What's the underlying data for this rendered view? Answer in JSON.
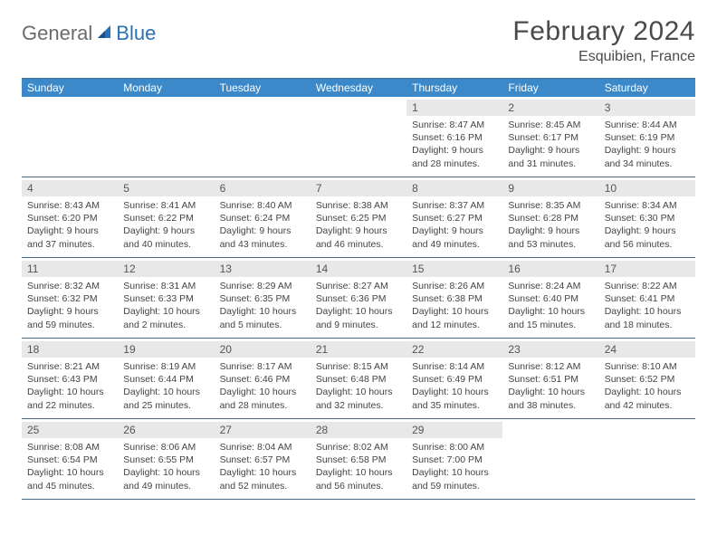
{
  "logo": {
    "general": "General",
    "blue": "Blue"
  },
  "title": "February 2024",
  "location": "Esquibien, France",
  "colors": {
    "header_bg": "#3b89c9",
    "header_text": "#ffffff",
    "day_bar_bg": "#e8e8e8",
    "border": "#4a6a8a",
    "logo_gray": "#6b6b6b",
    "logo_blue": "#2971b8"
  },
  "day_headers": [
    "Sunday",
    "Monday",
    "Tuesday",
    "Wednesday",
    "Thursday",
    "Friday",
    "Saturday"
  ],
  "weeks": [
    [
      {
        "n": "",
        "sr": "",
        "ss": "",
        "dl": ""
      },
      {
        "n": "",
        "sr": "",
        "ss": "",
        "dl": ""
      },
      {
        "n": "",
        "sr": "",
        "ss": "",
        "dl": ""
      },
      {
        "n": "",
        "sr": "",
        "ss": "",
        "dl": ""
      },
      {
        "n": "1",
        "sr": "Sunrise: 8:47 AM",
        "ss": "Sunset: 6:16 PM",
        "dl": "Daylight: 9 hours and 28 minutes."
      },
      {
        "n": "2",
        "sr": "Sunrise: 8:45 AM",
        "ss": "Sunset: 6:17 PM",
        "dl": "Daylight: 9 hours and 31 minutes."
      },
      {
        "n": "3",
        "sr": "Sunrise: 8:44 AM",
        "ss": "Sunset: 6:19 PM",
        "dl": "Daylight: 9 hours and 34 minutes."
      }
    ],
    [
      {
        "n": "4",
        "sr": "Sunrise: 8:43 AM",
        "ss": "Sunset: 6:20 PM",
        "dl": "Daylight: 9 hours and 37 minutes."
      },
      {
        "n": "5",
        "sr": "Sunrise: 8:41 AM",
        "ss": "Sunset: 6:22 PM",
        "dl": "Daylight: 9 hours and 40 minutes."
      },
      {
        "n": "6",
        "sr": "Sunrise: 8:40 AM",
        "ss": "Sunset: 6:24 PM",
        "dl": "Daylight: 9 hours and 43 minutes."
      },
      {
        "n": "7",
        "sr": "Sunrise: 8:38 AM",
        "ss": "Sunset: 6:25 PM",
        "dl": "Daylight: 9 hours and 46 minutes."
      },
      {
        "n": "8",
        "sr": "Sunrise: 8:37 AM",
        "ss": "Sunset: 6:27 PM",
        "dl": "Daylight: 9 hours and 49 minutes."
      },
      {
        "n": "9",
        "sr": "Sunrise: 8:35 AM",
        "ss": "Sunset: 6:28 PM",
        "dl": "Daylight: 9 hours and 53 minutes."
      },
      {
        "n": "10",
        "sr": "Sunrise: 8:34 AM",
        "ss": "Sunset: 6:30 PM",
        "dl": "Daylight: 9 hours and 56 minutes."
      }
    ],
    [
      {
        "n": "11",
        "sr": "Sunrise: 8:32 AM",
        "ss": "Sunset: 6:32 PM",
        "dl": "Daylight: 9 hours and 59 minutes."
      },
      {
        "n": "12",
        "sr": "Sunrise: 8:31 AM",
        "ss": "Sunset: 6:33 PM",
        "dl": "Daylight: 10 hours and 2 minutes."
      },
      {
        "n": "13",
        "sr": "Sunrise: 8:29 AM",
        "ss": "Sunset: 6:35 PM",
        "dl": "Daylight: 10 hours and 5 minutes."
      },
      {
        "n": "14",
        "sr": "Sunrise: 8:27 AM",
        "ss": "Sunset: 6:36 PM",
        "dl": "Daylight: 10 hours and 9 minutes."
      },
      {
        "n": "15",
        "sr": "Sunrise: 8:26 AM",
        "ss": "Sunset: 6:38 PM",
        "dl": "Daylight: 10 hours and 12 minutes."
      },
      {
        "n": "16",
        "sr": "Sunrise: 8:24 AM",
        "ss": "Sunset: 6:40 PM",
        "dl": "Daylight: 10 hours and 15 minutes."
      },
      {
        "n": "17",
        "sr": "Sunrise: 8:22 AM",
        "ss": "Sunset: 6:41 PM",
        "dl": "Daylight: 10 hours and 18 minutes."
      }
    ],
    [
      {
        "n": "18",
        "sr": "Sunrise: 8:21 AM",
        "ss": "Sunset: 6:43 PM",
        "dl": "Daylight: 10 hours and 22 minutes."
      },
      {
        "n": "19",
        "sr": "Sunrise: 8:19 AM",
        "ss": "Sunset: 6:44 PM",
        "dl": "Daylight: 10 hours and 25 minutes."
      },
      {
        "n": "20",
        "sr": "Sunrise: 8:17 AM",
        "ss": "Sunset: 6:46 PM",
        "dl": "Daylight: 10 hours and 28 minutes."
      },
      {
        "n": "21",
        "sr": "Sunrise: 8:15 AM",
        "ss": "Sunset: 6:48 PM",
        "dl": "Daylight: 10 hours and 32 minutes."
      },
      {
        "n": "22",
        "sr": "Sunrise: 8:14 AM",
        "ss": "Sunset: 6:49 PM",
        "dl": "Daylight: 10 hours and 35 minutes."
      },
      {
        "n": "23",
        "sr": "Sunrise: 8:12 AM",
        "ss": "Sunset: 6:51 PM",
        "dl": "Daylight: 10 hours and 38 minutes."
      },
      {
        "n": "24",
        "sr": "Sunrise: 8:10 AM",
        "ss": "Sunset: 6:52 PM",
        "dl": "Daylight: 10 hours and 42 minutes."
      }
    ],
    [
      {
        "n": "25",
        "sr": "Sunrise: 8:08 AM",
        "ss": "Sunset: 6:54 PM",
        "dl": "Daylight: 10 hours and 45 minutes."
      },
      {
        "n": "26",
        "sr": "Sunrise: 8:06 AM",
        "ss": "Sunset: 6:55 PM",
        "dl": "Daylight: 10 hours and 49 minutes."
      },
      {
        "n": "27",
        "sr": "Sunrise: 8:04 AM",
        "ss": "Sunset: 6:57 PM",
        "dl": "Daylight: 10 hours and 52 minutes."
      },
      {
        "n": "28",
        "sr": "Sunrise: 8:02 AM",
        "ss": "Sunset: 6:58 PM",
        "dl": "Daylight: 10 hours and 56 minutes."
      },
      {
        "n": "29",
        "sr": "Sunrise: 8:00 AM",
        "ss": "Sunset: 7:00 PM",
        "dl": "Daylight: 10 hours and 59 minutes."
      },
      {
        "n": "",
        "sr": "",
        "ss": "",
        "dl": ""
      },
      {
        "n": "",
        "sr": "",
        "ss": "",
        "dl": ""
      }
    ]
  ]
}
